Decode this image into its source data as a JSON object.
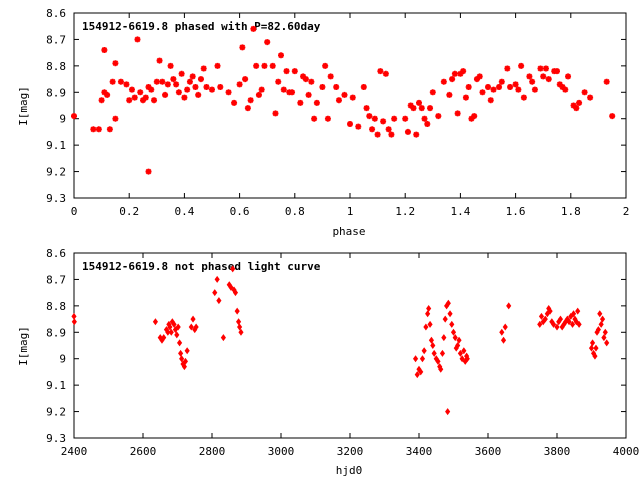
{
  "chart_data": [
    {
      "type": "scatter",
      "title": "154912-6619.8 phased with P=82.60day",
      "xlabel": "phase",
      "ylabel": "I[mag]",
      "xlim": [
        0,
        2
      ],
      "ylim": [
        9.3,
        8.6
      ],
      "y_inverted": true,
      "xticks": [
        0,
        0.2,
        0.4,
        0.6,
        0.8,
        1,
        1.2,
        1.4,
        1.6,
        1.8,
        2
      ],
      "yticks": [
        8.6,
        8.7,
        8.8,
        8.9,
        9,
        9.1,
        9.2,
        9.3
      ],
      "xtick_labels": [
        "0",
        "0.2",
        "0.4",
        "0.6",
        "0.8",
        "1",
        "1.2",
        "1.4",
        "1.6",
        "1.8",
        "2"
      ],
      "ytick_labels": [
        "8.6",
        "8.7",
        "8.8",
        "8.9",
        "9",
        "9.1",
        "9.2",
        "9.3"
      ],
      "marker_color": "#ff0000",
      "points": [
        [
          0.0,
          8.99
        ],
        [
          0.07,
          9.04
        ],
        [
          0.09,
          9.04
        ],
        [
          0.1,
          8.93
        ],
        [
          0.11,
          8.9
        ],
        [
          0.11,
          8.74
        ],
        [
          0.12,
          8.91
        ],
        [
          0.13,
          9.04
        ],
        [
          0.14,
          8.86
        ],
        [
          0.15,
          8.79
        ],
        [
          0.15,
          9.0
        ],
        [
          0.17,
          8.86
        ],
        [
          0.19,
          8.87
        ],
        [
          0.2,
          8.93
        ],
        [
          0.21,
          8.89
        ],
        [
          0.22,
          8.92
        ],
        [
          0.23,
          8.7
        ],
        [
          0.24,
          8.9
        ],
        [
          0.25,
          8.93
        ],
        [
          0.26,
          8.92
        ],
        [
          0.27,
          9.2
        ],
        [
          0.27,
          8.88
        ],
        [
          0.28,
          8.89
        ],
        [
          0.29,
          8.93
        ],
        [
          0.3,
          8.86
        ],
        [
          0.31,
          8.78
        ],
        [
          0.32,
          8.86
        ],
        [
          0.33,
          8.91
        ],
        [
          0.34,
          8.87
        ],
        [
          0.35,
          8.8
        ],
        [
          0.36,
          8.85
        ],
        [
          0.37,
          8.87
        ],
        [
          0.38,
          8.9
        ],
        [
          0.39,
          8.83
        ],
        [
          0.4,
          8.92
        ],
        [
          0.41,
          8.89
        ],
        [
          0.42,
          8.86
        ],
        [
          0.43,
          8.84
        ],
        [
          0.44,
          8.88
        ],
        [
          0.45,
          8.91
        ],
        [
          0.46,
          8.85
        ],
        [
          0.47,
          8.81
        ],
        [
          0.48,
          8.88
        ],
        [
          0.5,
          8.89
        ],
        [
          0.52,
          8.8
        ],
        [
          0.53,
          8.88
        ],
        [
          0.56,
          8.9
        ],
        [
          0.58,
          8.94
        ],
        [
          0.6,
          8.87
        ],
        [
          0.61,
          8.73
        ],
        [
          0.62,
          8.85
        ],
        [
          0.63,
          8.96
        ],
        [
          0.64,
          8.93
        ],
        [
          0.65,
          8.66
        ],
        [
          0.66,
          8.8
        ],
        [
          0.67,
          8.91
        ],
        [
          0.68,
          8.89
        ],
        [
          0.69,
          8.8
        ],
        [
          0.7,
          8.71
        ],
        [
          0.72,
          8.8
        ],
        [
          0.73,
          8.98
        ],
        [
          0.74,
          8.86
        ],
        [
          0.75,
          8.76
        ],
        [
          0.76,
          8.89
        ],
        [
          0.77,
          8.82
        ],
        [
          0.78,
          8.9
        ],
        [
          0.79,
          8.9
        ],
        [
          0.8,
          8.82
        ],
        [
          0.82,
          8.94
        ],
        [
          0.83,
          8.84
        ],
        [
          0.84,
          8.85
        ],
        [
          0.85,
          8.91
        ],
        [
          0.86,
          8.86
        ],
        [
          0.87,
          9.0
        ],
        [
          0.88,
          8.94
        ],
        [
          0.9,
          8.88
        ],
        [
          0.91,
          8.8
        ],
        [
          0.92,
          9.0
        ],
        [
          0.93,
          8.84
        ],
        [
          0.95,
          8.88
        ],
        [
          0.96,
          8.93
        ],
        [
          0.98,
          8.91
        ],
        [
          1.0,
          9.02
        ],
        [
          1.01,
          8.92
        ],
        [
          1.03,
          9.03
        ],
        [
          1.05,
          8.88
        ],
        [
          1.06,
          8.96
        ],
        [
          1.07,
          8.99
        ],
        [
          1.08,
          9.04
        ],
        [
          1.09,
          9.0
        ],
        [
          1.1,
          9.06
        ],
        [
          1.11,
          8.82
        ],
        [
          1.12,
          9.01
        ],
        [
          1.13,
          8.83
        ],
        [
          1.14,
          9.04
        ],
        [
          1.15,
          9.06
        ],
        [
          1.16,
          9.0
        ],
        [
          1.2,
          9.0
        ],
        [
          1.21,
          9.05
        ],
        [
          1.22,
          8.95
        ],
        [
          1.23,
          8.96
        ],
        [
          1.24,
          9.06
        ],
        [
          1.25,
          8.94
        ],
        [
          1.26,
          8.96
        ],
        [
          1.27,
          9.0
        ],
        [
          1.28,
          9.02
        ],
        [
          1.29,
          8.96
        ],
        [
          1.3,
          8.9
        ],
        [
          1.32,
          8.99
        ],
        [
          1.34,
          8.86
        ],
        [
          1.36,
          8.91
        ],
        [
          1.37,
          8.85
        ],
        [
          1.38,
          8.83
        ],
        [
          1.39,
          8.98
        ],
        [
          1.4,
          8.83
        ],
        [
          1.41,
          8.82
        ],
        [
          1.42,
          8.92
        ],
        [
          1.43,
          8.88
        ],
        [
          1.44,
          9.0
        ],
        [
          1.45,
          8.99
        ],
        [
          1.46,
          8.85
        ],
        [
          1.47,
          8.84
        ],
        [
          1.48,
          8.9
        ],
        [
          1.5,
          8.88
        ],
        [
          1.51,
          8.93
        ],
        [
          1.52,
          8.89
        ],
        [
          1.54,
          8.88
        ],
        [
          1.55,
          8.86
        ],
        [
          1.57,
          8.81
        ],
        [
          1.58,
          8.88
        ],
        [
          1.6,
          8.87
        ],
        [
          1.61,
          8.89
        ],
        [
          1.62,
          8.8
        ],
        [
          1.63,
          8.92
        ],
        [
          1.65,
          8.84
        ],
        [
          1.66,
          8.86
        ],
        [
          1.67,
          8.89
        ],
        [
          1.69,
          8.81
        ],
        [
          1.7,
          8.84
        ],
        [
          1.71,
          8.81
        ],
        [
          1.72,
          8.85
        ],
        [
          1.74,
          8.82
        ],
        [
          1.75,
          8.82
        ],
        [
          1.76,
          8.87
        ],
        [
          1.77,
          8.88
        ],
        [
          1.78,
          8.89
        ],
        [
          1.79,
          8.84
        ],
        [
          1.81,
          8.95
        ],
        [
          1.82,
          8.96
        ],
        [
          1.83,
          8.94
        ],
        [
          1.85,
          8.9
        ],
        [
          1.87,
          8.92
        ],
        [
          1.93,
          8.86
        ],
        [
          1.95,
          8.99
        ]
      ]
    },
    {
      "type": "scatter",
      "title": "154912-6619.8 not phased light curve",
      "xlabel": "hjd0",
      "ylabel": "I[mag]",
      "xlim": [
        2400,
        4000
      ],
      "ylim": [
        9.3,
        8.6
      ],
      "y_inverted": true,
      "xticks": [
        2400,
        2600,
        2800,
        3000,
        3200,
        3400,
        3600,
        3800,
        4000
      ],
      "yticks": [
        8.6,
        8.7,
        8.8,
        8.9,
        9,
        9.1,
        9.2,
        9.3
      ],
      "xtick_labels": [
        "2400",
        "2600",
        "2800",
        "3000",
        "3200",
        "3400",
        "3600",
        "3800",
        "4000"
      ],
      "ytick_labels": [
        "8.6",
        "8.7",
        "8.8",
        "8.9",
        "9",
        "9.1",
        "9.2",
        "9.3"
      ],
      "marker_color": "#ff0000",
      "points": [
        [
          2400,
          8.84
        ],
        [
          2401,
          8.86
        ],
        [
          2636,
          8.86
        ],
        [
          2650,
          8.92
        ],
        [
          2655,
          8.93
        ],
        [
          2660,
          8.92
        ],
        [
          2668,
          8.89
        ],
        [
          2672,
          8.9
        ],
        [
          2675,
          8.87
        ],
        [
          2678,
          8.88
        ],
        [
          2682,
          8.9
        ],
        [
          2685,
          8.86
        ],
        [
          2690,
          8.87
        ],
        [
          2694,
          8.89
        ],
        [
          2698,
          8.91
        ],
        [
          2702,
          8.88
        ],
        [
          2706,
          8.94
        ],
        [
          2709,
          8.98
        ],
        [
          2712,
          9.0
        ],
        [
          2716,
          9.02
        ],
        [
          2720,
          9.03
        ],
        [
          2723,
          9.01
        ],
        [
          2728,
          8.97
        ],
        [
          2740,
          8.88
        ],
        [
          2745,
          8.85
        ],
        [
          2750,
          8.89
        ],
        [
          2754,
          8.88
        ],
        [
          2808,
          8.75
        ],
        [
          2815,
          8.7
        ],
        [
          2820,
          8.78
        ],
        [
          2833,
          8.92
        ],
        [
          2850,
          8.72
        ],
        [
          2855,
          8.73
        ],
        [
          2860,
          8.66
        ],
        [
          2864,
          8.74
        ],
        [
          2868,
          8.75
        ],
        [
          2873,
          8.82
        ],
        [
          2877,
          8.86
        ],
        [
          2880,
          8.88
        ],
        [
          2884,
          8.9
        ],
        [
          3390,
          9.0
        ],
        [
          3395,
          9.06
        ],
        [
          3400,
          9.04
        ],
        [
          3405,
          9.05
        ],
        [
          3410,
          9.0
        ],
        [
          3415,
          8.97
        ],
        [
          3420,
          8.88
        ],
        [
          3425,
          8.83
        ],
        [
          3428,
          8.81
        ],
        [
          3432,
          8.87
        ],
        [
          3436,
          8.93
        ],
        [
          3440,
          8.95
        ],
        [
          3444,
          8.98
        ],
        [
          3450,
          9.0
        ],
        [
          3455,
          9.01
        ],
        [
          3460,
          9.03
        ],
        [
          3463,
          9.04
        ],
        [
          3468,
          8.98
        ],
        [
          3472,
          8.92
        ],
        [
          3476,
          8.85
        ],
        [
          3480,
          8.8
        ],
        [
          3483,
          9.2
        ],
        [
          3485,
          8.79
        ],
        [
          3490,
          8.83
        ],
        [
          3495,
          8.87
        ],
        [
          3500,
          8.9
        ],
        [
          3505,
          8.92
        ],
        [
          3508,
          8.96
        ],
        [
          3512,
          8.95
        ],
        [
          3516,
          8.93
        ],
        [
          3520,
          8.98
        ],
        [
          3525,
          9.0
        ],
        [
          3530,
          8.97
        ],
        [
          3534,
          9.01
        ],
        [
          3538,
          8.99
        ],
        [
          3540,
          9.0
        ],
        [
          3640,
          8.9
        ],
        [
          3645,
          8.93
        ],
        [
          3650,
          8.88
        ],
        [
          3660,
          8.8
        ],
        [
          3750,
          8.87
        ],
        [
          3755,
          8.84
        ],
        [
          3760,
          8.86
        ],
        [
          3766,
          8.85
        ],
        [
          3772,
          8.83
        ],
        [
          3776,
          8.81
        ],
        [
          3780,
          8.82
        ],
        [
          3785,
          8.86
        ],
        [
          3790,
          8.87
        ],
        [
          3800,
          8.88
        ],
        [
          3805,
          8.86
        ],
        [
          3810,
          8.85
        ],
        [
          3815,
          8.88
        ],
        [
          3820,
          8.87
        ],
        [
          3825,
          8.86
        ],
        [
          3830,
          8.85
        ],
        [
          3835,
          8.86
        ],
        [
          3840,
          8.84
        ],
        [
          3845,
          8.87
        ],
        [
          3848,
          8.83
        ],
        [
          3852,
          8.85
        ],
        [
          3856,
          8.86
        ],
        [
          3860,
          8.82
        ],
        [
          3864,
          8.87
        ],
        [
          3900,
          8.96
        ],
        [
          3903,
          8.94
        ],
        [
          3906,
          8.98
        ],
        [
          3910,
          8.99
        ],
        [
          3913,
          8.96
        ],
        [
          3916,
          8.9
        ],
        [
          3920,
          8.89
        ],
        [
          3924,
          8.83
        ],
        [
          3928,
          8.87
        ],
        [
          3932,
          8.85
        ],
        [
          3936,
          8.92
        ],
        [
          3940,
          8.9
        ],
        [
          3944,
          8.94
        ]
      ]
    }
  ]
}
